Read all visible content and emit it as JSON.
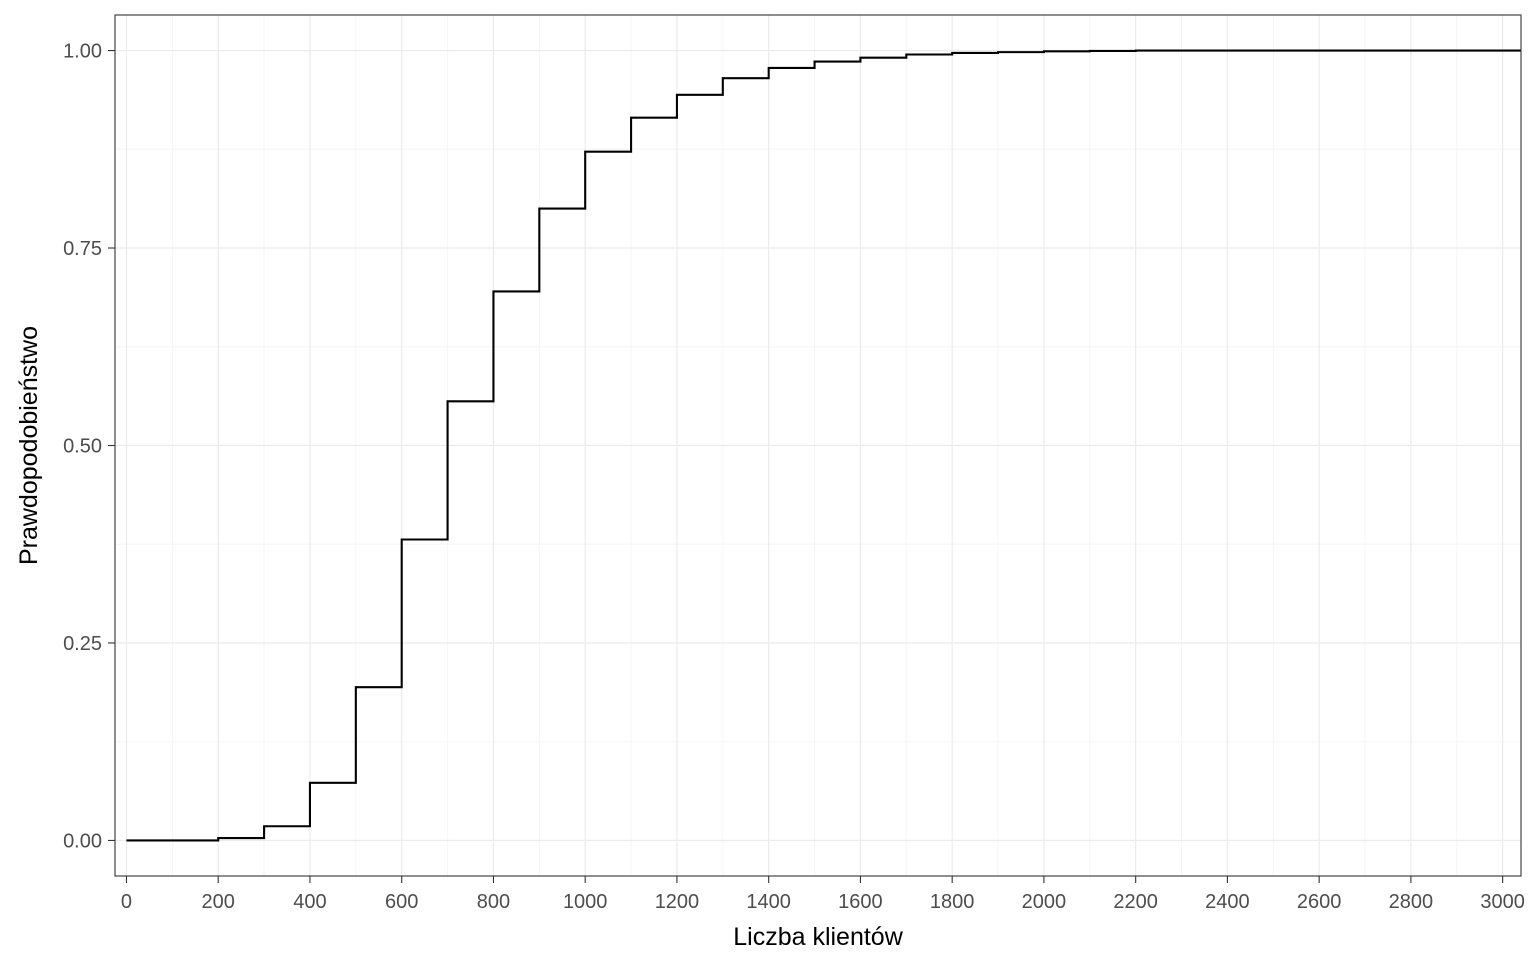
{
  "chart_data": {
    "type": "line",
    "subtype": "step",
    "title": "",
    "xlabel": "Liczba klientów",
    "ylabel": "Prawdopodobieństwo",
    "xlim": [
      -25,
      3040
    ],
    "ylim": [
      -0.045,
      1.045
    ],
    "x_ticks": [
      0,
      200,
      400,
      600,
      800,
      1000,
      1200,
      1400,
      1600,
      1800,
      2000,
      2200,
      2400,
      2600,
      2800,
      3000
    ],
    "x_tick_labels": [
      "0",
      "200",
      "400",
      "600",
      "800",
      "1000",
      "1200",
      "1400",
      "1600",
      "1800",
      "2000",
      "2200",
      "2400",
      "2600",
      "2800",
      "3000"
    ],
    "y_ticks": [
      0,
      0.25,
      0.5,
      0.75,
      1.0
    ],
    "y_tick_labels": [
      "0.00",
      "0.25",
      "0.50",
      "0.75",
      "1.00"
    ],
    "grid": true,
    "legend": "none",
    "series": [
      {
        "x": [
          0,
          100,
          200,
          300,
          400,
          500,
          600,
          700,
          800,
          900,
          1000,
          1100,
          1200,
          1300,
          1400,
          1500,
          1600,
          1700,
          1800,
          1900,
          2000,
          2100,
          2200,
          2300,
          2400,
          2500,
          2600,
          2700,
          2800,
          2900,
          3000,
          3040
        ],
        "y": [
          0.0,
          0.0,
          0.003,
          0.018,
          0.073,
          0.194,
          0.381,
          0.556,
          0.695,
          0.8,
          0.872,
          0.915,
          0.944,
          0.965,
          0.978,
          0.986,
          0.991,
          0.995,
          0.997,
          0.998,
          0.999,
          0.9995,
          1.0,
          1.0,
          1.0,
          1.0,
          1.0,
          1.0,
          1.0,
          1.0,
          1.0,
          1.0
        ]
      }
    ],
    "colors": {
      "line": "#000000",
      "grid_major": "#ebebeb",
      "grid_minor": "#f5f5f5",
      "panel_border": "#333333",
      "tick_label": "#4d4d4d"
    }
  }
}
